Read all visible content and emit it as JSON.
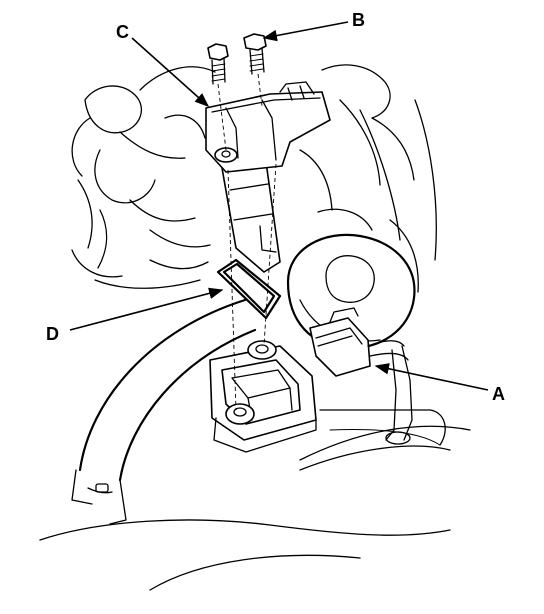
{
  "callouts": {
    "a": {
      "label": "A"
    },
    "b": {
      "label": "B"
    },
    "c": {
      "label": "C"
    },
    "d": {
      "label": "D"
    }
  }
}
